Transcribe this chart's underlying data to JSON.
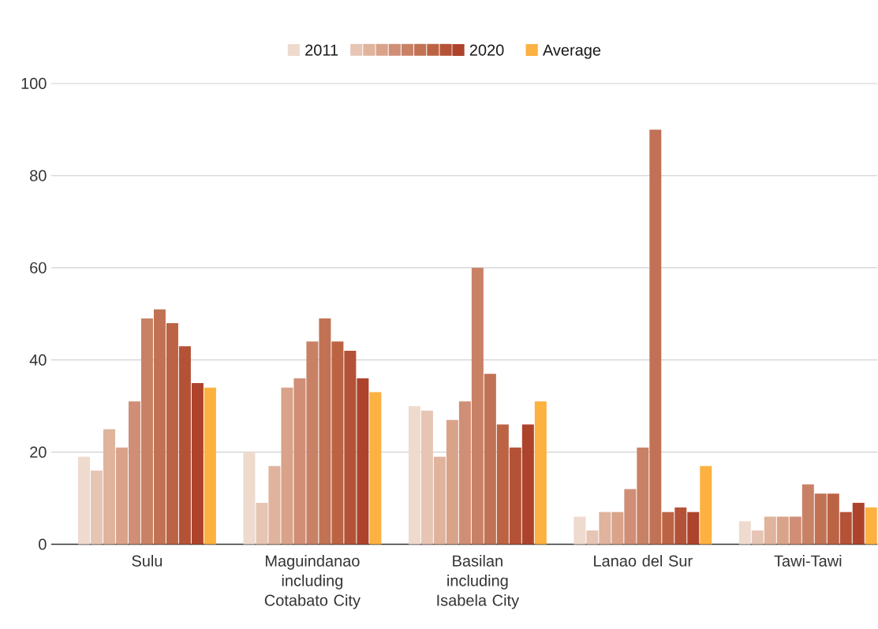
{
  "chart_data": {
    "type": "bar",
    "categories": [
      "Sulu",
      "Maguindanao including Cotabato City",
      "Basilan including Isabela City",
      "Lanao del Sur",
      "Tawi-Tawi"
    ],
    "series": [
      {
        "name": "2011",
        "color": "#efdace",
        "values": [
          19,
          20,
          30,
          6,
          5
        ]
      },
      {
        "color": "#e6c5b5",
        "values": [
          16,
          9,
          29,
          3,
          3
        ]
      },
      {
        "color": "#e0b39c",
        "values": [
          25,
          17,
          19,
          7,
          6
        ]
      },
      {
        "color": "#d9a38a",
        "values": [
          21,
          34,
          27,
          7,
          6
        ]
      },
      {
        "color": "#d08e77",
        "values": [
          31,
          36,
          31,
          12,
          6
        ]
      },
      {
        "color": "#c98166",
        "values": [
          49,
          44,
          60,
          21,
          13
        ]
      },
      {
        "color": "#c17254",
        "values": [
          51,
          49,
          37,
          90,
          11
        ]
      },
      {
        "color": "#bc6344",
        "values": [
          48,
          44,
          26,
          7,
          11
        ]
      },
      {
        "color": "#b45237",
        "values": [
          43,
          42,
          21,
          8,
          7
        ]
      },
      {
        "name": "2020",
        "color": "#ad432b",
        "values": [
          35,
          36,
          26,
          7,
          9
        ]
      },
      {
        "name": "Average",
        "color": "#fcb140",
        "values": [
          34,
          33,
          31,
          17,
          8
        ]
      }
    ],
    "ylim": [
      0,
      100
    ],
    "yticks": [
      0,
      20,
      40,
      60,
      80,
      100
    ],
    "grid": "y",
    "legend": "top"
  }
}
